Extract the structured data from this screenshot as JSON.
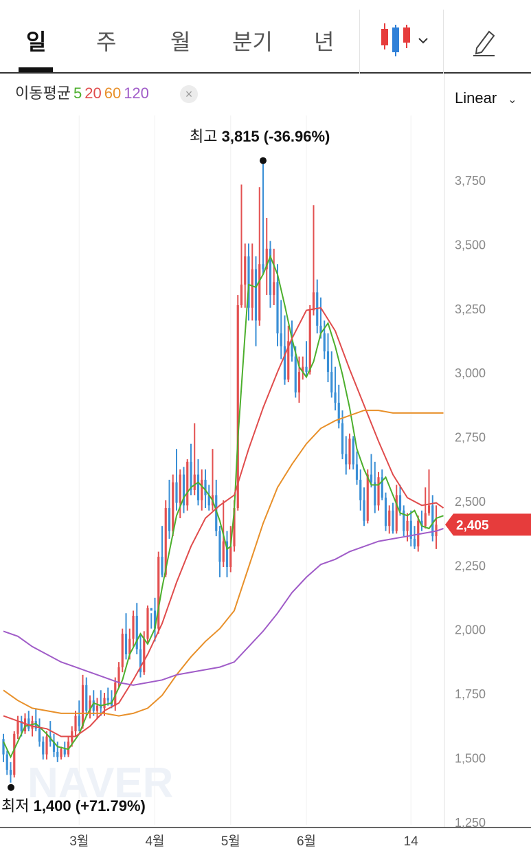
{
  "tabs": [
    "일",
    "주",
    "월",
    "분기",
    "년"
  ],
  "active_tab": "일",
  "toolbar": {
    "chart_type_icon": "candlestick-icon",
    "draw_icon": "pencil-icon"
  },
  "moving_average": {
    "label": "이동평균",
    "periods": [
      {
        "value": "5",
        "color": "#4caf2d"
      },
      {
        "value": "20",
        "color": "#e04c4c"
      },
      {
        "value": "60",
        "color": "#e8902a"
      },
      {
        "value": "120",
        "color": "#a05cc8"
      }
    ]
  },
  "scale_label": "Linear",
  "watermark": "NAVER",
  "annotations": {
    "high_label": "최고",
    "high_value": "3,815 (-36.96%)",
    "low_label": "최저",
    "low_value": "1,400 (+71.79%)"
  },
  "colors": {
    "up": "#e35050",
    "down": "#3a8fd6",
    "price_tag": "#e63c3c"
  },
  "chart_data": {
    "type": "candlestick",
    "scale": "linear",
    "ylim": [
      1250,
      3875
    ],
    "y_ticks": [
      "3,750",
      "3,500",
      "3,250",
      "3,000",
      "2,750",
      "2,500",
      "2,250",
      "2,000",
      "1,750",
      "1,500",
      "1,250"
    ],
    "y_tick_values": [
      3750,
      3500,
      3250,
      3000,
      2750,
      2500,
      2250,
      2000,
      1750,
      1500,
      1250
    ],
    "x_ticks": [
      "3월",
      "4월",
      "5월",
      "6월",
      "14"
    ],
    "x_tick_index": [
      21,
      42,
      63,
      84,
      113
    ],
    "current_price": "2,405",
    "current_price_value": 2405,
    "high": {
      "value": 3815,
      "index": 72
    },
    "low": {
      "value": 1400,
      "index": 2
    },
    "ohlc": [
      [
        1570,
        1590,
        1480,
        1510
      ],
      [
        1510,
        1525,
        1430,
        1450
      ],
      [
        1450,
        1480,
        1400,
        1430
      ],
      [
        1430,
        1600,
        1420,
        1590
      ],
      [
        1590,
        1660,
        1570,
        1640
      ],
      [
        1640,
        1660,
        1580,
        1600
      ],
      [
        1600,
        1670,
        1590,
        1650
      ],
      [
        1650,
        1680,
        1600,
        1610
      ],
      [
        1610,
        1660,
        1580,
        1640
      ],
      [
        1640,
        1690,
        1600,
        1610
      ],
      [
        1610,
        1650,
        1540,
        1560
      ],
      [
        1560,
        1580,
        1490,
        1510
      ],
      [
        1510,
        1600,
        1490,
        1580
      ],
      [
        1580,
        1640,
        1540,
        1560
      ],
      [
        1560,
        1590,
        1500,
        1520
      ],
      [
        1520,
        1560,
        1480,
        1500
      ],
      [
        1500,
        1540,
        1490,
        1530
      ],
      [
        1530,
        1560,
        1500,
        1510
      ],
      [
        1510,
        1580,
        1500,
        1560
      ],
      [
        1560,
        1620,
        1540,
        1600
      ],
      [
        1600,
        1680,
        1580,
        1660
      ],
      [
        1660,
        1720,
        1600,
        1620
      ],
      [
        1620,
        1820,
        1610,
        1780
      ],
      [
        1780,
        1810,
        1660,
        1680
      ],
      [
        1680,
        1740,
        1650,
        1720
      ],
      [
        1720,
        1760,
        1660,
        1680
      ],
      [
        1680,
        1730,
        1650,
        1700
      ],
      [
        1700,
        1760,
        1660,
        1690
      ],
      [
        1690,
        1750,
        1660,
        1730
      ],
      [
        1730,
        1770,
        1700,
        1720
      ],
      [
        1720,
        1760,
        1690,
        1700
      ],
      [
        1700,
        1810,
        1680,
        1790
      ],
      [
        1790,
        1870,
        1770,
        1850
      ],
      [
        1850,
        2000,
        1830,
        1980
      ],
      [
        1980,
        2060,
        1880,
        1900
      ],
      [
        1900,
        2000,
        1880,
        1960
      ],
      [
        1960,
        2070,
        1930,
        2050
      ],
      [
        2050,
        2100,
        1900,
        1920
      ],
      [
        1920,
        1980,
        1810,
        1830
      ],
      [
        1830,
        1990,
        1820,
        1960
      ],
      [
        1960,
        2090,
        1940,
        2080
      ],
      [
        2080,
        2060,
        2000,
        2070
      ],
      [
        2070,
        2120,
        1950,
        2000
      ],
      [
        2000,
        2300,
        1980,
        2280
      ],
      [
        2280,
        2400,
        2200,
        2210
      ],
      [
        2210,
        2500,
        2200,
        2470
      ],
      [
        2470,
        2580,
        2350,
        2380
      ],
      [
        2380,
        2600,
        2360,
        2570
      ],
      [
        2570,
        2700,
        2460,
        2490
      ],
      [
        2490,
        2620,
        2430,
        2600
      ],
      [
        2600,
        2630,
        2450,
        2480
      ],
      [
        2480,
        2660,
        2460,
        2650
      ],
      [
        2650,
        2720,
        2520,
        2540
      ],
      [
        2540,
        2800,
        2520,
        2600
      ],
      [
        2600,
        2660,
        2480,
        2500
      ],
      [
        2500,
        2620,
        2460,
        2580
      ],
      [
        2580,
        2620,
        2470,
        2520
      ],
      [
        2520,
        2560,
        2460,
        2480
      ],
      [
        2480,
        2700,
        2460,
        2520
      ],
      [
        2520,
        2580,
        2360,
        2380
      ],
      [
        2380,
        2400,
        2200,
        2260
      ],
      [
        2260,
        2500,
        2240,
        2340
      ],
      [
        2340,
        2380,
        2200,
        2240
      ],
      [
        2240,
        2400,
        2220,
        2320
      ],
      [
        2320,
        2500,
        2300,
        2470
      ],
      [
        2470,
        3300,
        2460,
        3260
      ],
      [
        3260,
        3730,
        3250,
        3340
      ],
      [
        3340,
        3500,
        3250,
        3450
      ],
      [
        3450,
        3500,
        3200,
        3250
      ],
      [
        3250,
        3500,
        3200,
        3400
      ],
      [
        3400,
        3450,
        3100,
        3200
      ],
      [
        3200,
        3720,
        3180,
        3420
      ],
      [
        3420,
        3815,
        3380,
        3400
      ],
      [
        3400,
        3600,
        3300,
        3480
      ],
      [
        3480,
        3510,
        3250,
        3300
      ],
      [
        3300,
        3480,
        3260,
        3350
      ],
      [
        3350,
        3420,
        3100,
        3150
      ],
      [
        3150,
        3280,
        3050,
        3100
      ],
      [
        3100,
        3220,
        2950,
        2970
      ],
      [
        2970,
        3180,
        2960,
        3120
      ],
      [
        3120,
        3200,
        3040,
        3060
      ],
      [
        3060,
        3100,
        2900,
        2920
      ],
      [
        2920,
        3060,
        2880,
        3000
      ],
      [
        3000,
        3060,
        2970,
        3020
      ],
      [
        3020,
        3120,
        2980,
        3000
      ],
      [
        3000,
        3260,
        2990,
        3240
      ],
      [
        3240,
        3650,
        3220,
        3310
      ],
      [
        3310,
        3360,
        3150,
        3180
      ],
      [
        3180,
        3290,
        3130,
        3150
      ],
      [
        3150,
        3200,
        3050,
        3080
      ],
      [
        3080,
        3150,
        2960,
        3000
      ],
      [
        3000,
        3080,
        2900,
        2920
      ],
      [
        2920,
        3020,
        2850,
        2880
      ],
      [
        2880,
        2950,
        2780,
        2800
      ],
      [
        2800,
        2850,
        2660,
        2680
      ],
      [
        2680,
        2750,
        2600,
        2640
      ],
      [
        2640,
        2760,
        2620,
        2740
      ],
      [
        2740,
        2750,
        2620,
        2640
      ],
      [
        2640,
        2690,
        2560,
        2580
      ],
      [
        2580,
        2620,
        2460,
        2500
      ],
      [
        2500,
        2550,
        2400,
        2420
      ],
      [
        2420,
        2620,
        2410,
        2600
      ],
      [
        2600,
        2680,
        2550,
        2570
      ],
      [
        2570,
        2650,
        2450,
        2480
      ],
      [
        2480,
        2610,
        2460,
        2590
      ],
      [
        2590,
        2620,
        2500,
        2510
      ],
      [
        2510,
        2530,
        2380,
        2400
      ],
      [
        2400,
        2480,
        2370,
        2460
      ],
      [
        2460,
        2490,
        2370,
        2380
      ],
      [
        2380,
        2560,
        2370,
        2520
      ],
      [
        2520,
        2560,
        2440,
        2460
      ],
      [
        2460,
        2480,
        2360,
        2380
      ],
      [
        2380,
        2450,
        2340,
        2420
      ],
      [
        2420,
        2460,
        2320,
        2350
      ],
      [
        2350,
        2400,
        2310,
        2320
      ],
      [
        2320,
        2440,
        2300,
        2420
      ],
      [
        2420,
        2460,
        2380,
        2400
      ],
      [
        2400,
        2550,
        2390,
        2450
      ],
      [
        2450,
        2620,
        2440,
        2480
      ],
      [
        2480,
        2520,
        2340,
        2360
      ],
      [
        2360,
        2480,
        2310,
        2405
      ]
    ],
    "ma_series": [
      {
        "name": "5",
        "color": "#4caf2d",
        "points": [
          [
            0,
            1560
          ],
          [
            2,
            1500
          ],
          [
            4,
            1560
          ],
          [
            6,
            1620
          ],
          [
            9,
            1630
          ],
          [
            12,
            1590
          ],
          [
            15,
            1540
          ],
          [
            18,
            1530
          ],
          [
            21,
            1590
          ],
          [
            23,
            1660
          ],
          [
            25,
            1710
          ],
          [
            27,
            1700
          ],
          [
            30,
            1710
          ],
          [
            33,
            1800
          ],
          [
            35,
            1900
          ],
          [
            38,
            1980
          ],
          [
            40,
            1940
          ],
          [
            42,
            2000
          ],
          [
            44,
            2160
          ],
          [
            46,
            2300
          ],
          [
            48,
            2440
          ],
          [
            50,
            2510
          ],
          [
            52,
            2550
          ],
          [
            54,
            2570
          ],
          [
            56,
            2540
          ],
          [
            58,
            2500
          ],
          [
            60,
            2420
          ],
          [
            62,
            2310
          ],
          [
            63,
            2320
          ],
          [
            64,
            2460
          ],
          [
            65,
            2740
          ],
          [
            67,
            3150
          ],
          [
            68,
            3340
          ],
          [
            70,
            3330
          ],
          [
            72,
            3380
          ],
          [
            74,
            3450
          ],
          [
            76,
            3380
          ],
          [
            78,
            3260
          ],
          [
            80,
            3130
          ],
          [
            82,
            3020
          ],
          [
            84,
            2980
          ],
          [
            86,
            3040
          ],
          [
            88,
            3150
          ],
          [
            90,
            3190
          ],
          [
            92,
            3100
          ],
          [
            94,
            2990
          ],
          [
            96,
            2860
          ],
          [
            98,
            2700
          ],
          [
            100,
            2620
          ],
          [
            102,
            2560
          ],
          [
            104,
            2560
          ],
          [
            106,
            2590
          ],
          [
            108,
            2520
          ],
          [
            110,
            2450
          ],
          [
            112,
            2440
          ],
          [
            114,
            2460
          ],
          [
            116,
            2400
          ],
          [
            118,
            2390
          ],
          [
            120,
            2430
          ],
          [
            122,
            2440
          ]
        ]
      },
      {
        "name": "20",
        "color": "#e04c4c",
        "points": [
          [
            0,
            1660
          ],
          [
            4,
            1640
          ],
          [
            8,
            1620
          ],
          [
            12,
            1610
          ],
          [
            16,
            1580
          ],
          [
            20,
            1580
          ],
          [
            24,
            1620
          ],
          [
            28,
            1680
          ],
          [
            32,
            1710
          ],
          [
            36,
            1800
          ],
          [
            40,
            1900
          ],
          [
            44,
            2020
          ],
          [
            48,
            2180
          ],
          [
            52,
            2320
          ],
          [
            56,
            2430
          ],
          [
            60,
            2480
          ],
          [
            64,
            2520
          ],
          [
            68,
            2700
          ],
          [
            72,
            2860
          ],
          [
            76,
            3000
          ],
          [
            80,
            3130
          ],
          [
            84,
            3240
          ],
          [
            88,
            3250
          ],
          [
            92,
            3160
          ],
          [
            96,
            3010
          ],
          [
            100,
            2870
          ],
          [
            104,
            2730
          ],
          [
            108,
            2600
          ],
          [
            112,
            2510
          ],
          [
            116,
            2480
          ],
          [
            120,
            2490
          ],
          [
            122,
            2470
          ]
        ]
      },
      {
        "name": "60",
        "color": "#e8902a",
        "points": [
          [
            0,
            1760
          ],
          [
            4,
            1720
          ],
          [
            8,
            1690
          ],
          [
            12,
            1680
          ],
          [
            16,
            1670
          ],
          [
            20,
            1670
          ],
          [
            24,
            1670
          ],
          [
            28,
            1670
          ],
          [
            32,
            1660
          ],
          [
            36,
            1670
          ],
          [
            40,
            1690
          ],
          [
            44,
            1740
          ],
          [
            48,
            1820
          ],
          [
            52,
            1890
          ],
          [
            56,
            1950
          ],
          [
            60,
            2000
          ],
          [
            64,
            2070
          ],
          [
            68,
            2240
          ],
          [
            72,
            2410
          ],
          [
            76,
            2550
          ],
          [
            80,
            2640
          ],
          [
            84,
            2720
          ],
          [
            88,
            2780
          ],
          [
            92,
            2810
          ],
          [
            96,
            2830
          ],
          [
            100,
            2850
          ],
          [
            104,
            2850
          ],
          [
            108,
            2840
          ],
          [
            112,
            2840
          ],
          [
            116,
            2840
          ],
          [
            120,
            2840
          ],
          [
            122,
            2840
          ]
        ]
      },
      {
        "name": "120",
        "color": "#a05cc8",
        "points": [
          [
            0,
            1990
          ],
          [
            4,
            1970
          ],
          [
            8,
            1930
          ],
          [
            12,
            1900
          ],
          [
            16,
            1870
          ],
          [
            20,
            1850
          ],
          [
            24,
            1830
          ],
          [
            28,
            1810
          ],
          [
            32,
            1790
          ],
          [
            36,
            1780
          ],
          [
            40,
            1790
          ],
          [
            44,
            1800
          ],
          [
            48,
            1820
          ],
          [
            52,
            1830
          ],
          [
            56,
            1840
          ],
          [
            60,
            1850
          ],
          [
            64,
            1870
          ],
          [
            68,
            1930
          ],
          [
            72,
            1990
          ],
          [
            76,
            2060
          ],
          [
            80,
            2140
          ],
          [
            84,
            2200
          ],
          [
            88,
            2250
          ],
          [
            92,
            2270
          ],
          [
            96,
            2300
          ],
          [
            100,
            2320
          ],
          [
            104,
            2340
          ],
          [
            108,
            2350
          ],
          [
            112,
            2360
          ],
          [
            116,
            2370
          ],
          [
            120,
            2380
          ],
          [
            122,
            2390
          ]
        ]
      }
    ]
  }
}
